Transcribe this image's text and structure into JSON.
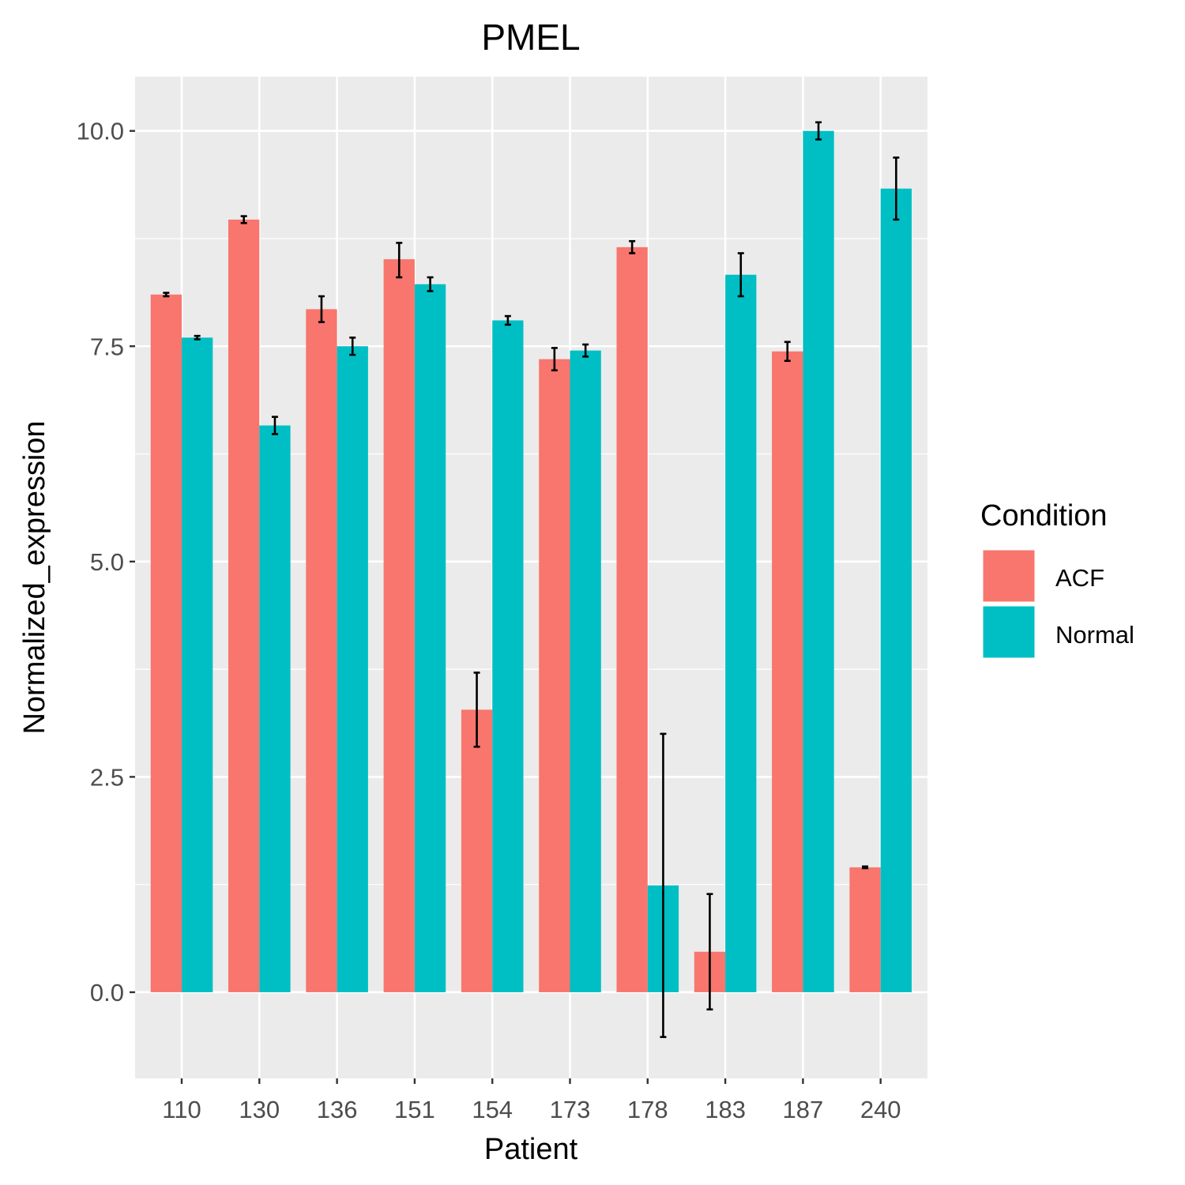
{
  "chart_data": {
    "type": "bar",
    "title": "PMEL",
    "xlabel": "Patient",
    "ylabel": "Normalized_expression",
    "categories": [
      "110",
      "130",
      "136",
      "151",
      "154",
      "173",
      "178",
      "183",
      "187",
      "240"
    ],
    "series": [
      {
        "name": "ACF",
        "color": "#F8766D",
        "values": [
          8.1,
          8.97,
          7.93,
          8.51,
          3.28,
          7.35,
          8.65,
          0.47,
          7.44,
          1.45
        ],
        "error_low": [
          8.08,
          8.93,
          7.78,
          8.3,
          2.85,
          7.22,
          8.58,
          -0.2,
          7.33,
          1.44
        ],
        "error_high": [
          8.12,
          9.01,
          8.08,
          8.7,
          3.71,
          7.48,
          8.72,
          1.14,
          7.55,
          1.46
        ]
      },
      {
        "name": "Normal",
        "color": "#00BFC4",
        "values": [
          7.6,
          6.58,
          7.5,
          8.22,
          7.8,
          7.45,
          1.24,
          8.33,
          10.0,
          9.33
        ],
        "error_low": [
          7.58,
          6.48,
          7.4,
          8.14,
          7.75,
          7.38,
          -0.52,
          8.08,
          9.9,
          8.97
        ],
        "error_high": [
          7.62,
          6.68,
          7.6,
          8.3,
          7.85,
          7.52,
          3.0,
          8.58,
          10.1,
          9.69
        ]
      }
    ],
    "ylim": [
      -1.0,
      10.63
    ],
    "yticks": [
      0.0,
      2.5,
      5.0,
      7.5,
      10.0
    ],
    "ytick_labels": [
      "0.0",
      "2.5",
      "5.0",
      "7.5",
      "10.0"
    ],
    "grid": true,
    "legend": {
      "title": "Condition",
      "position": "right",
      "entries": [
        "ACF",
        "Normal"
      ]
    },
    "panel_background": "#EBEBEB",
    "grid_color": "#FFFFFF"
  }
}
